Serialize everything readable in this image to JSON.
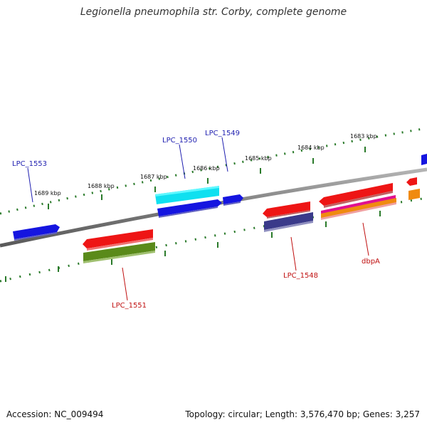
{
  "title": "Legionella pneumophila str. Corby, complete genome",
  "footer": {
    "accession": "Accession: NC_009494",
    "summary": "Topology: circular; Length: 3,576,470 bp; Genes: 3,257"
  },
  "colors": {
    "backbone": "#8a8a8a",
    "tick": "#2a7a2a",
    "blue_label": "#1f1fb0",
    "red_label": "#c01010"
  },
  "ticks": [
    {
      "label": "1689 kbp"
    },
    {
      "label": "1688 kbp"
    },
    {
      "label": "1687 kbp"
    },
    {
      "label": "1686 kbp"
    },
    {
      "label": "1685 kbp"
    },
    {
      "label": "1684 kbp"
    },
    {
      "label": "1683 kbp"
    }
  ],
  "gene_labels": [
    {
      "text": "LPC_1553"
    },
    {
      "text": "LPC_1550"
    },
    {
      "text": "LPC_1549"
    },
    {
      "text": "LPC_1551"
    },
    {
      "text": "LPC_1548"
    },
    {
      "text": "dbpA"
    }
  ]
}
